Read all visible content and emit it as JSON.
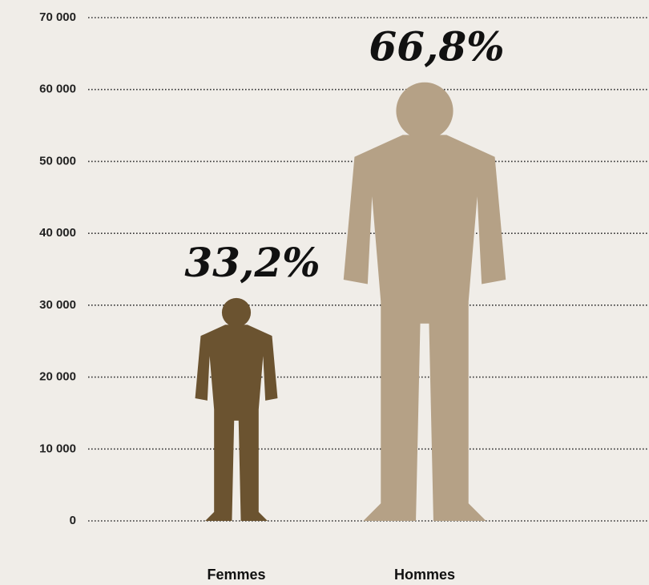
{
  "chart_data": {
    "type": "pictogram",
    "categories": [
      "Femmes",
      "Hommes"
    ],
    "values": [
      31000,
      61000
    ],
    "colors": [
      "#6b5330",
      "#b5a186"
    ],
    "annotations": [
      "33,2%",
      "66,8%"
    ],
    "ylim": [
      0,
      70000
    ],
    "yticks": [
      0,
      {
        "value": 10000,
        "label": "10 000"
      },
      {
        "value": 20000,
        "label": "20 000"
      },
      {
        "value": 30000,
        "label": "30 000"
      },
      {
        "value": 40000,
        "label": "40 000"
      },
      {
        "value": 50000,
        "label": "50 000"
      },
      {
        "value": 60000,
        "label": "60 000"
      },
      {
        "value": 70000,
        "label": "70 000"
      }
    ],
    "grid": true
  }
}
